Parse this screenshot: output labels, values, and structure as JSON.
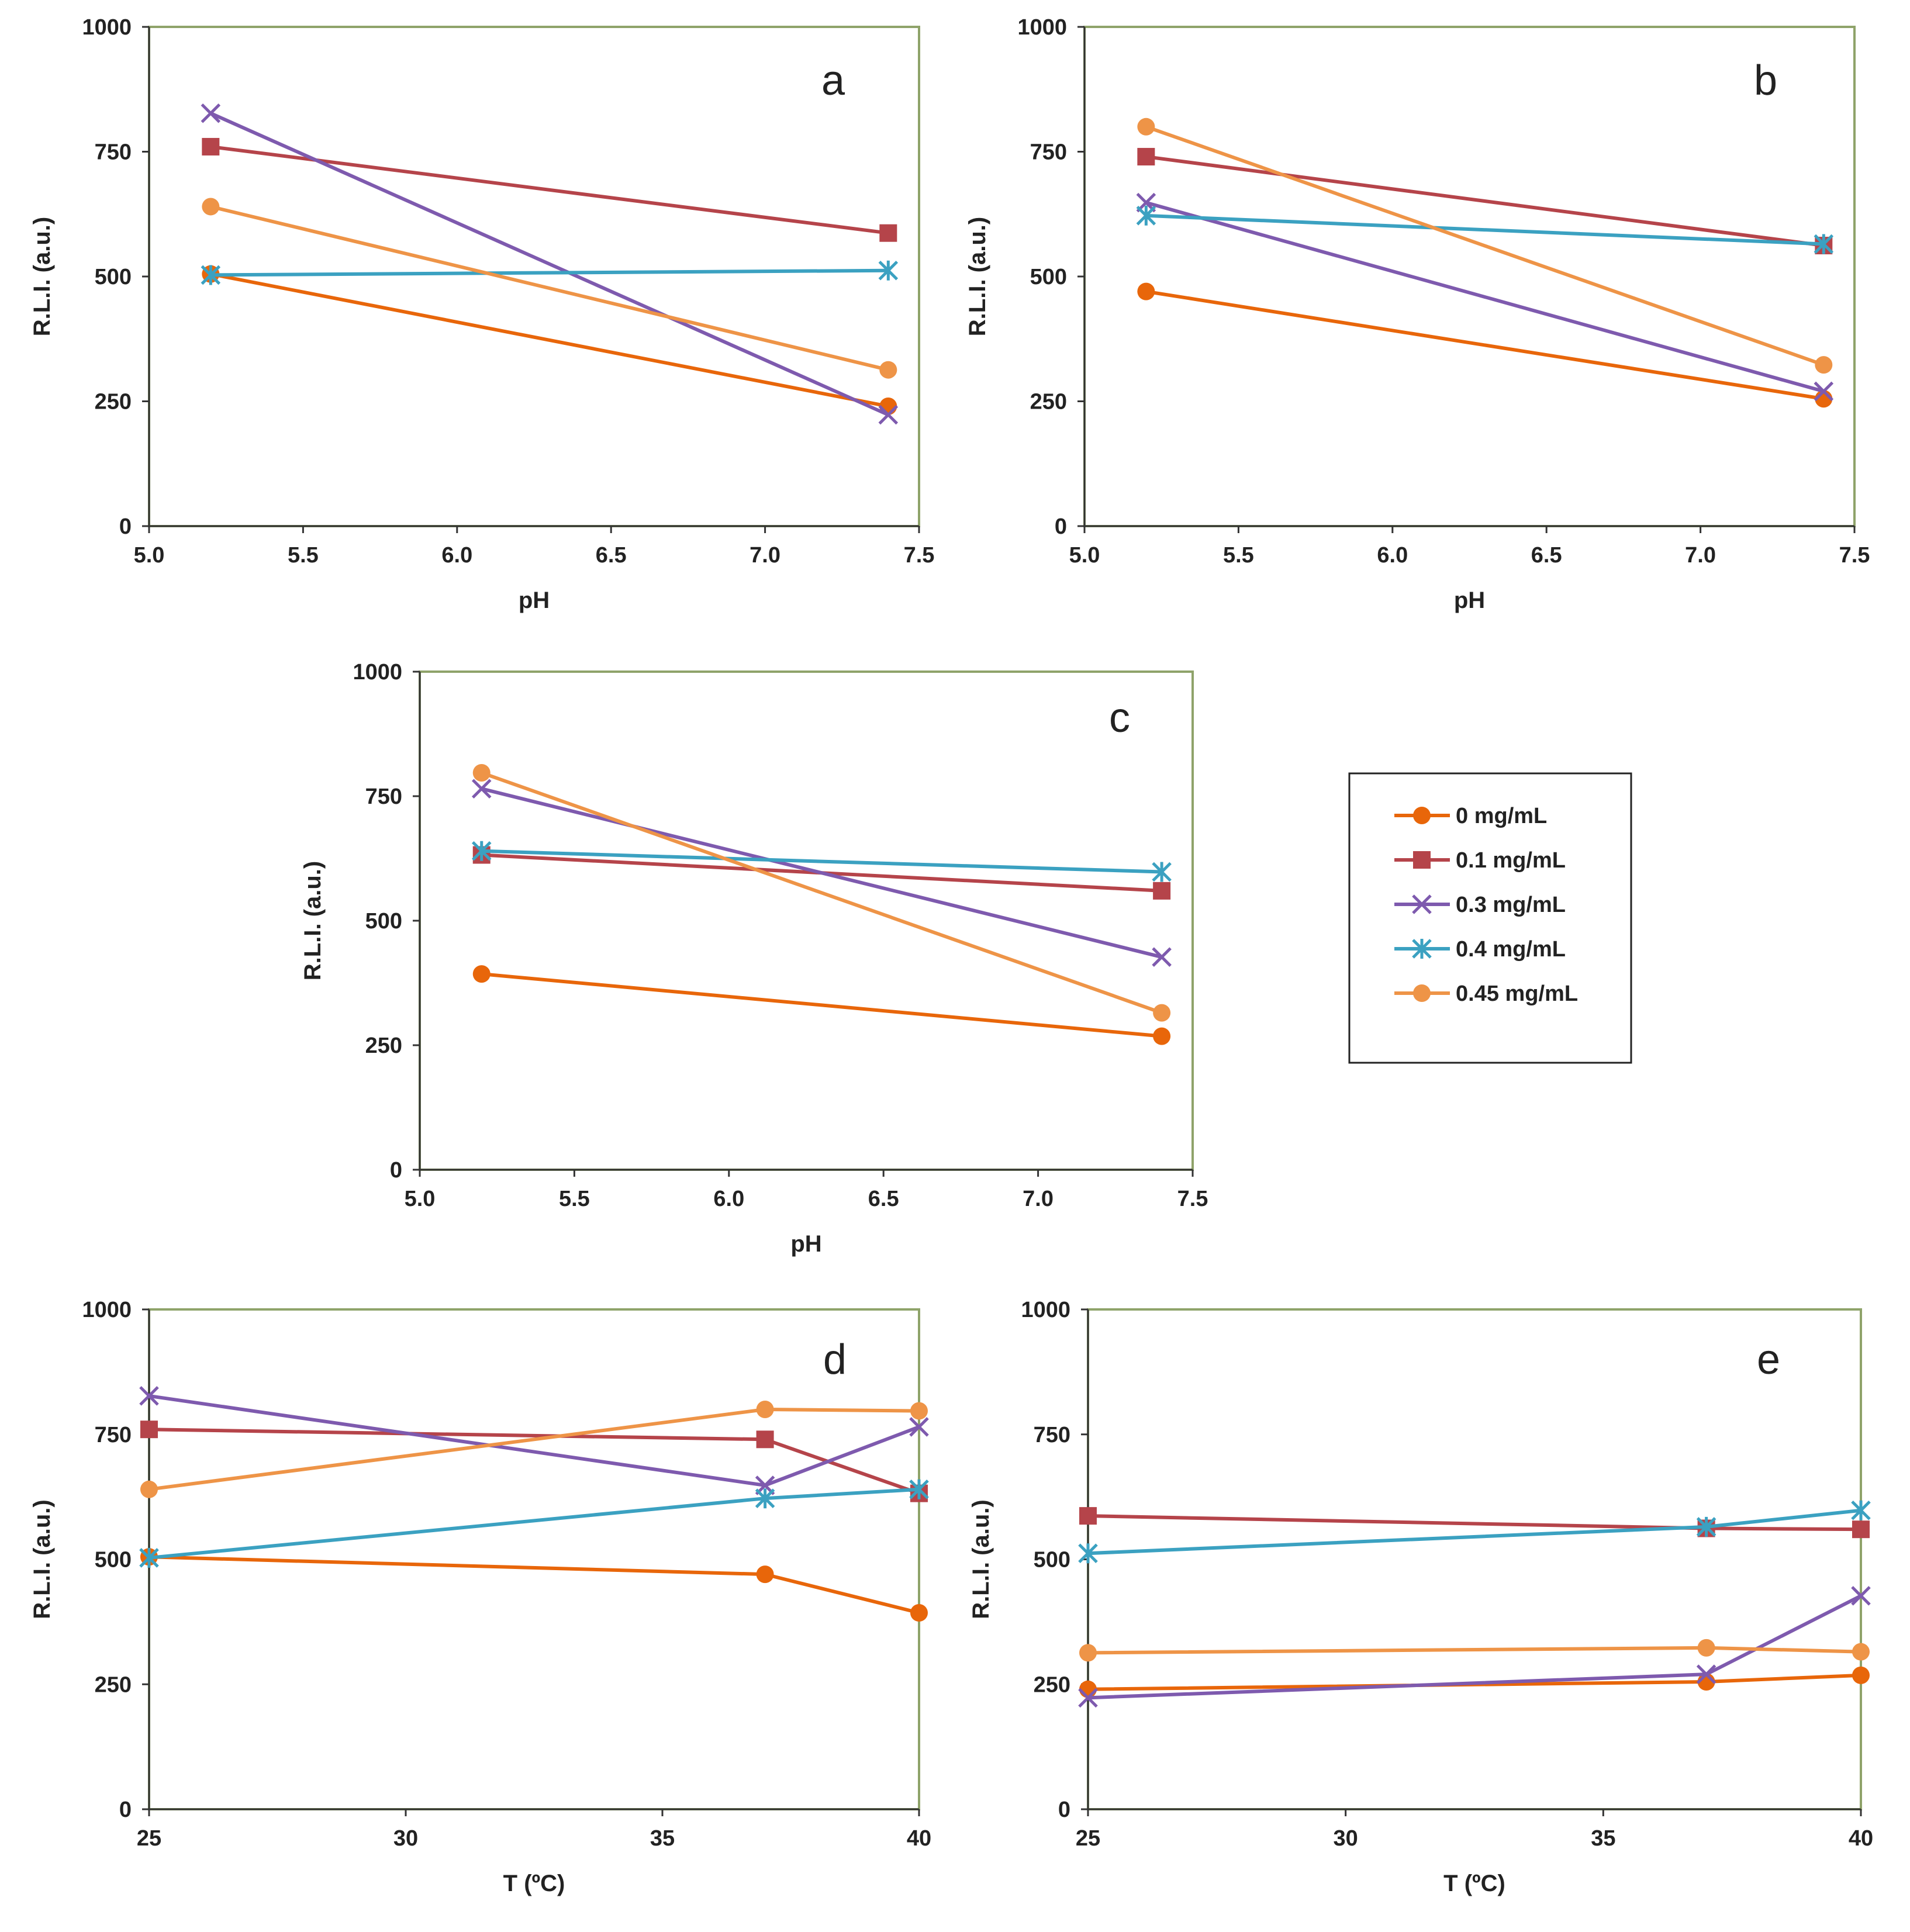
{
  "chart_data": [
    {
      "type": "line",
      "panel_label": "a",
      "xlabel": "pH",
      "ylabel": "R.L.I. (a.u.)",
      "xlim": [
        5.0,
        7.5
      ],
      "ylim": [
        0,
        1000
      ],
      "xticks": [
        "5.0",
        "5.5",
        "6.0",
        "6.5",
        "7.0",
        "7.5"
      ],
      "yticks": [
        "0",
        "250",
        "500",
        "750",
        "1000"
      ],
      "x": [
        5.2,
        7.4
      ],
      "series": [
        {
          "name": "0 mg/mL",
          "values": [
            505,
            240
          ]
        },
        {
          "name": "0.1 mg/mL",
          "values": [
            760,
            587
          ]
        },
        {
          "name": "0.3 mg/mL",
          "values": [
            827,
            223
          ]
        },
        {
          "name": "0.4 mg/mL",
          "values": [
            503,
            512
          ]
        },
        {
          "name": "0.45 mg/mL",
          "values": [
            640,
            313
          ]
        }
      ]
    },
    {
      "type": "line",
      "panel_label": "b",
      "xlabel": "pH",
      "ylabel": "R.L.I. (a.u.)",
      "xlim": [
        5.0,
        7.5
      ],
      "ylim": [
        0,
        1000
      ],
      "xticks": [
        "5.0",
        "5.5",
        "6.0",
        "6.5",
        "7.0",
        "7.5"
      ],
      "yticks": [
        "0",
        "250",
        "500",
        "750",
        "1000"
      ],
      "x": [
        5.2,
        7.4
      ],
      "series": [
        {
          "name": "0 mg/mL",
          "values": [
            470,
            255
          ]
        },
        {
          "name": "0.1 mg/mL",
          "values": [
            740,
            562
          ]
        },
        {
          "name": "0.3 mg/mL",
          "values": [
            648,
            270
          ]
        },
        {
          "name": "0.4 mg/mL",
          "values": [
            622,
            565
          ]
        },
        {
          "name": "0.45 mg/mL",
          "values": [
            800,
            323
          ]
        }
      ]
    },
    {
      "type": "line",
      "panel_label": "c",
      "xlabel": "pH",
      "ylabel": "R.L.I. (a.u.)",
      "xlim": [
        5.0,
        7.5
      ],
      "ylim": [
        0,
        1000
      ],
      "xticks": [
        "5.0",
        "5.5",
        "6.0",
        "6.5",
        "7.0",
        "7.5"
      ],
      "yticks": [
        "0",
        "250",
        "500",
        "750",
        "1000"
      ],
      "x": [
        5.2,
        7.4
      ],
      "series": [
        {
          "name": "0 mg/mL",
          "values": [
            393,
            268
          ]
        },
        {
          "name": "0.1 mg/mL",
          "values": [
            632,
            560
          ]
        },
        {
          "name": "0.3 mg/mL",
          "values": [
            765,
            427
          ]
        },
        {
          "name": "0.4 mg/mL",
          "values": [
            640,
            598
          ]
        },
        {
          "name": "0.45 mg/mL",
          "values": [
            797,
            315
          ]
        }
      ]
    },
    {
      "type": "line",
      "panel_label": "d",
      "xlabel": "T (ºC)",
      "ylabel": "R.L.I. (a.u.)",
      "xlim": [
        25,
        40
      ],
      "ylim": [
        0,
        1000
      ],
      "xticks": [
        "25",
        "30",
        "35",
        "40"
      ],
      "yticks": [
        "0",
        "250",
        "500",
        "750",
        "1000"
      ],
      "x": [
        25,
        37,
        40
      ],
      "series": [
        {
          "name": "0 mg/mL",
          "values": [
            505,
            470,
            393
          ]
        },
        {
          "name": "0.1 mg/mL",
          "values": [
            760,
            740,
            632
          ]
        },
        {
          "name": "0.3 mg/mL",
          "values": [
            827,
            648,
            765
          ]
        },
        {
          "name": "0.4 mg/mL",
          "values": [
            503,
            622,
            640
          ]
        },
        {
          "name": "0.45 mg/mL",
          "values": [
            640,
            800,
            797
          ]
        }
      ]
    },
    {
      "type": "line",
      "panel_label": "e",
      "xlabel": "T (ºC)",
      "ylabel": "R.L.I. (a.u.)",
      "xlim": [
        25,
        40
      ],
      "ylim": [
        0,
        1000
      ],
      "xticks": [
        "25",
        "30",
        "35",
        "40"
      ],
      "yticks": [
        "0",
        "250",
        "500",
        "750",
        "1000"
      ],
      "x": [
        25,
        37,
        40
      ],
      "series": [
        {
          "name": "0 mg/mL",
          "values": [
            240,
            255,
            268
          ]
        },
        {
          "name": "0.1 mg/mL",
          "values": [
            587,
            562,
            560
          ]
        },
        {
          "name": "0.3 mg/mL",
          "values": [
            223,
            270,
            427
          ]
        },
        {
          "name": "0.4 mg/mL",
          "values": [
            512,
            565,
            598
          ]
        },
        {
          "name": "0.45 mg/mL",
          "values": [
            313,
            323,
            315
          ]
        }
      ]
    }
  ],
  "legend": {
    "entries": [
      {
        "name": "0 mg/mL",
        "color": "#E8660A",
        "marker": "circle"
      },
      {
        "name": "0.1 mg/mL",
        "color": "#B5444A",
        "marker": "square"
      },
      {
        "name": "0.3 mg/mL",
        "color": "#7E5AAE",
        "marker": "x"
      },
      {
        "name": "0.4 mg/mL",
        "color": "#3BA1C1",
        "marker": "star"
      },
      {
        "name": "0.45 mg/mL",
        "color": "#EE9447",
        "marker": "circle"
      }
    ]
  },
  "colors": {
    "frame": "#8FA36A",
    "axis": "#333333"
  }
}
